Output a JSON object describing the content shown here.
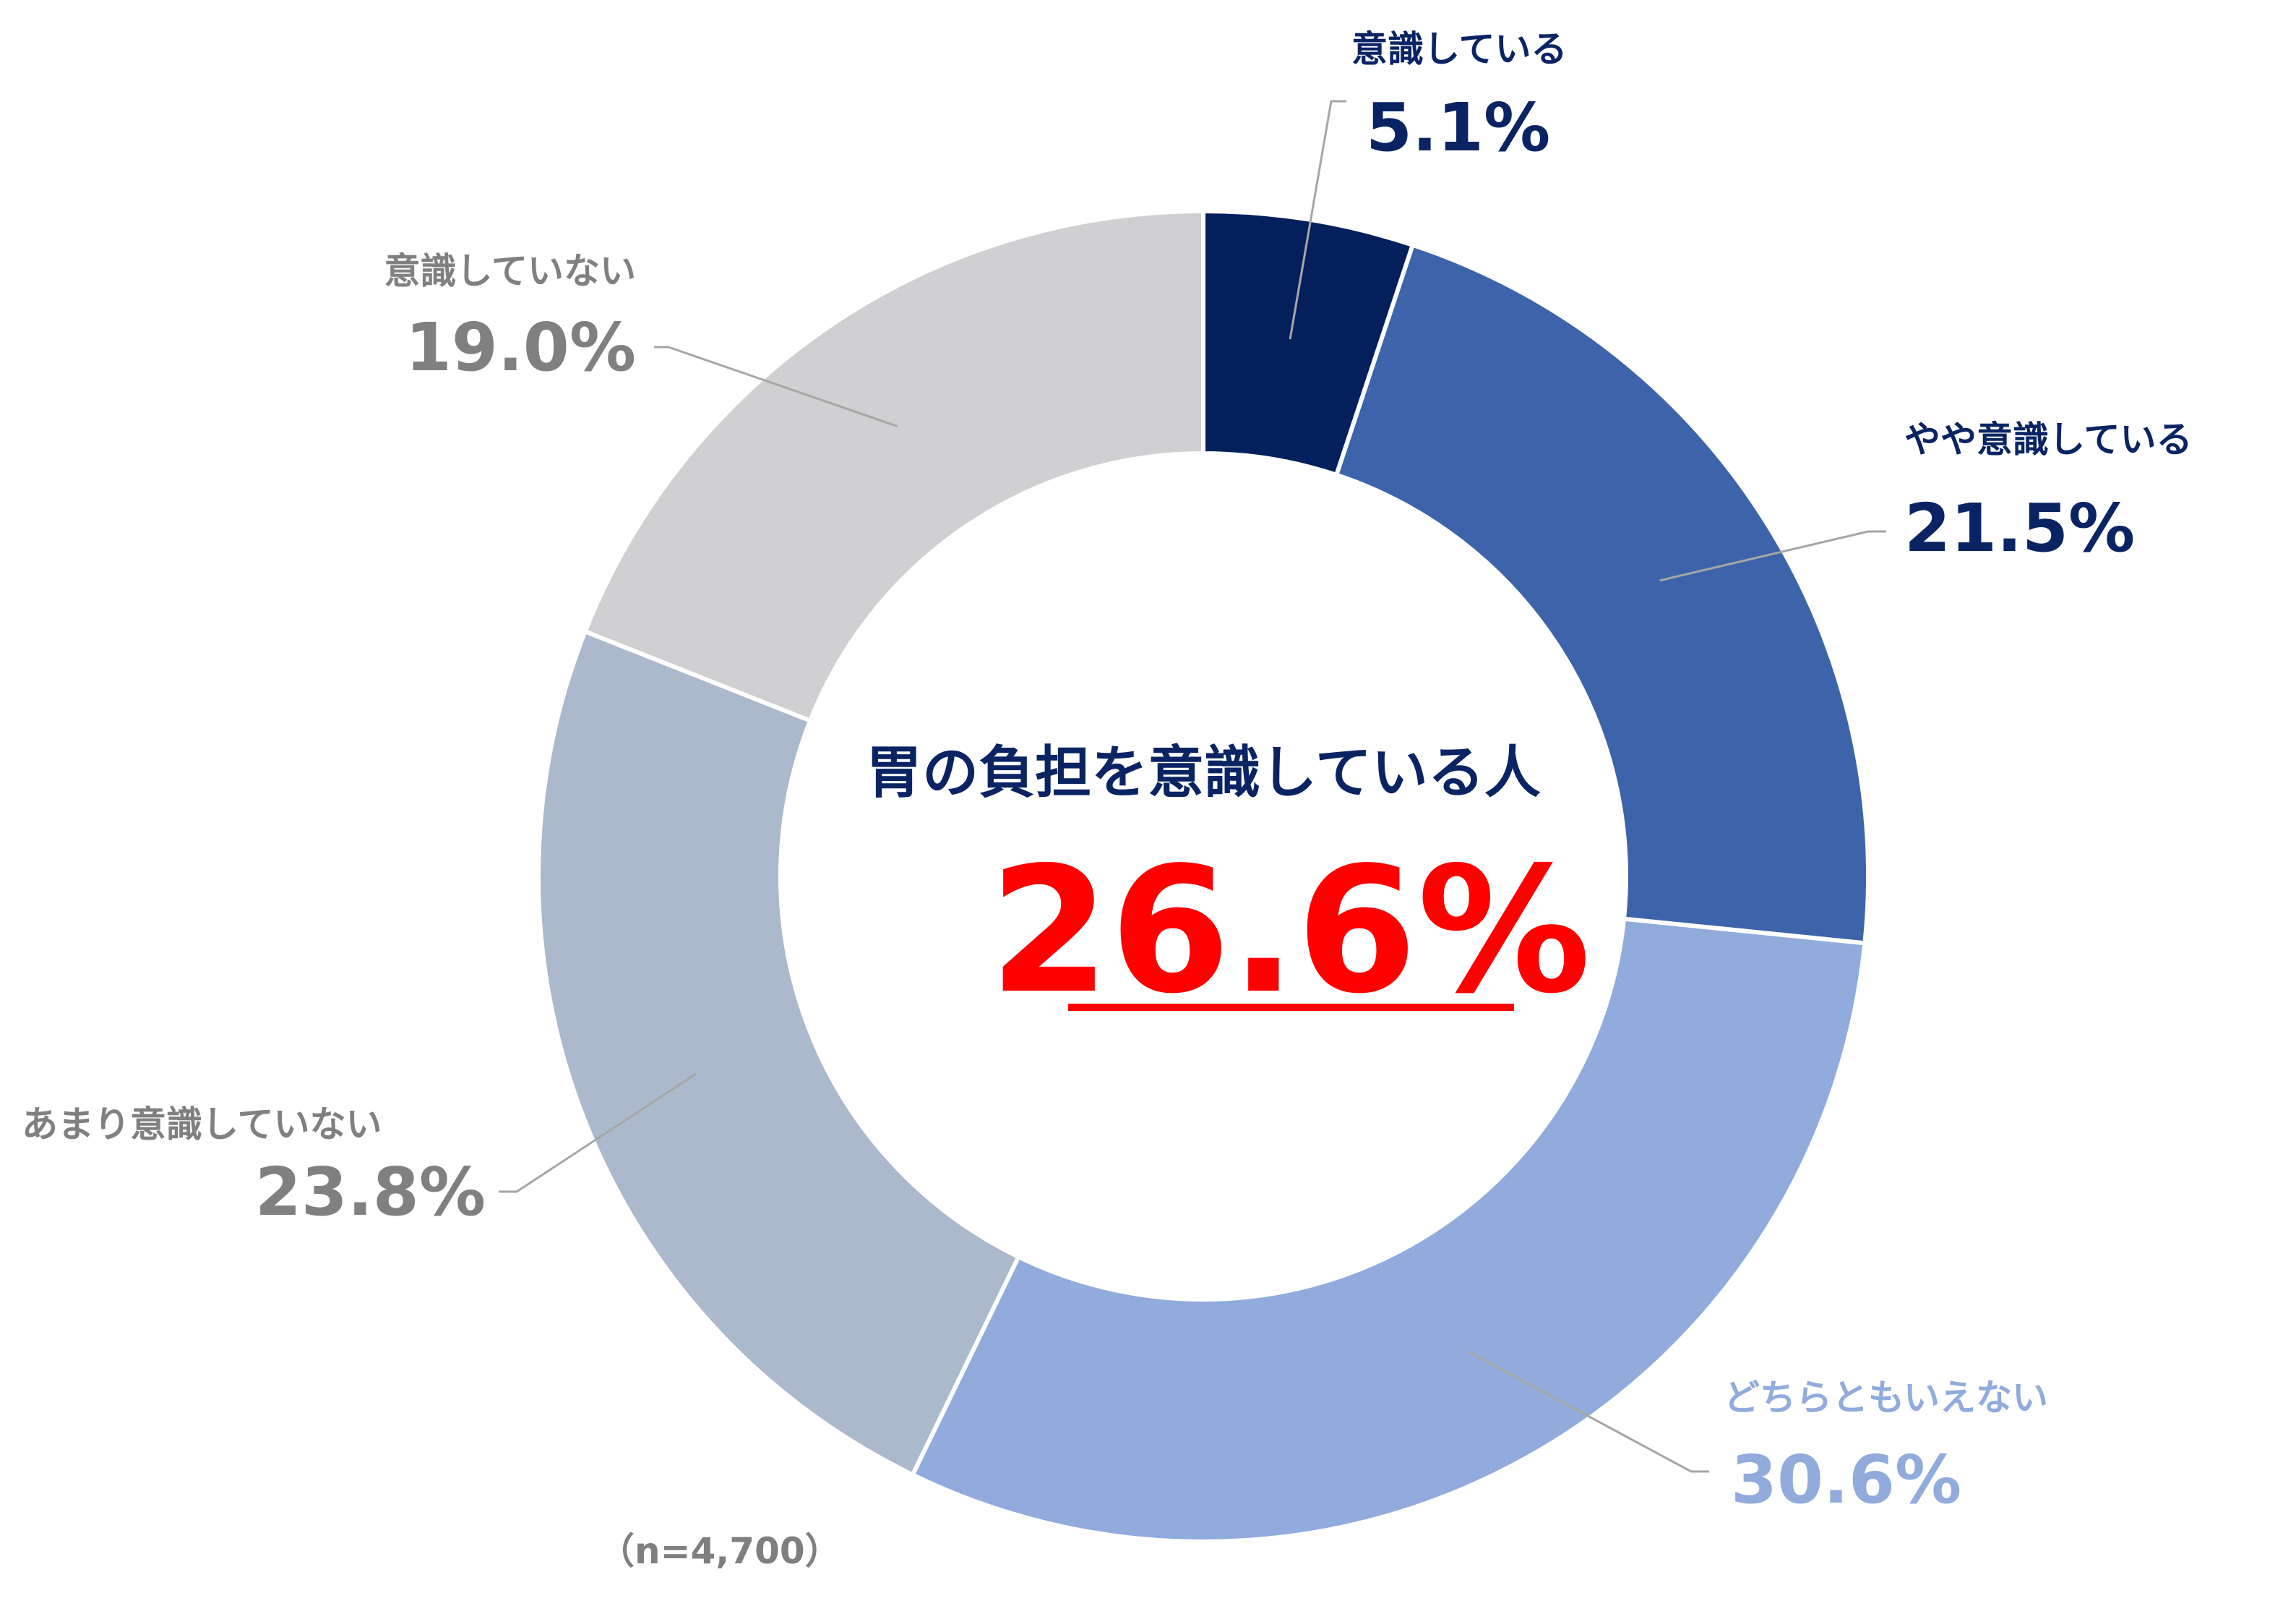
{
  "chart_data": {
    "type": "pie",
    "variant": "donut",
    "categories": [
      "意識している",
      "やや意識している",
      "どちらともいえない",
      "あまり意識していない",
      "意識していない"
    ],
    "values": [
      5.1,
      21.5,
      30.6,
      23.8,
      19.0
    ],
    "value_labels": [
      "5.1%",
      "21.5%",
      "30.6%",
      "23.8%",
      "19.0%"
    ],
    "colors": [
      "#03205c",
      "#3d64ab",
      "#90abdc",
      "#acb8cb",
      "#d0cfd1"
    ],
    "label_colors": [
      "#0a2463",
      "#0a2463",
      "#90abdc",
      "#808080",
      "#808080"
    ],
    "start_angle_deg": 0,
    "direction": "clockwise",
    "center": {
      "title": "胃の負担を意識している人",
      "value": "26.6%",
      "value_color": "#ff0000",
      "title_color": "#0a2463",
      "underline": true
    },
    "note": "（n=4,700）",
    "legend": "none"
  }
}
